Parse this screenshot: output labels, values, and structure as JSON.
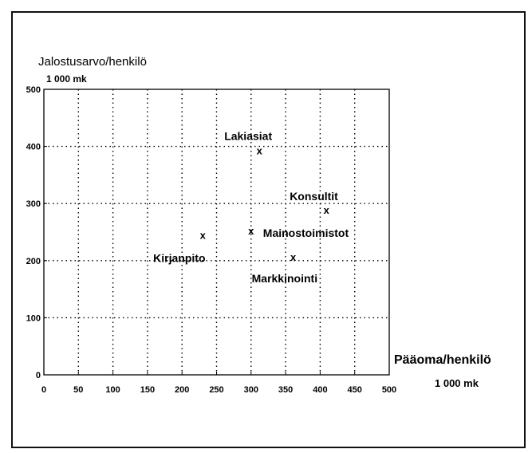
{
  "chart_data": {
    "type": "scatter",
    "title": "",
    "ylabel": "Jalostusarvo/henkilö",
    "ylabel_unit": "1 000 mk",
    "xlabel": "Pääoma/henkilö",
    "xlabel_unit": "1 000 mk",
    "xlim": [
      0,
      500
    ],
    "ylim": [
      0,
      500
    ],
    "x_ticks": [
      "0",
      "50",
      "100",
      "150",
      "200",
      "250",
      "300",
      "350",
      "400",
      "450",
      "500"
    ],
    "y_ticks": [
      "0",
      "100",
      "200",
      "300",
      "400",
      "500"
    ],
    "grid": true,
    "marker_symbol": "x",
    "points": [
      {
        "label": "Lakiasiat",
        "x": 312,
        "y": 393
      },
      {
        "label": "Konsultit",
        "x": 409,
        "y": 289
      },
      {
        "label": "Mainostoimistot",
        "x": 300,
        "y": 253
      },
      {
        "label": "Kirjanpito",
        "x": 230,
        "y": 245
      },
      {
        "label": "Markkinointi",
        "x": 361,
        "y": 207
      }
    ]
  }
}
